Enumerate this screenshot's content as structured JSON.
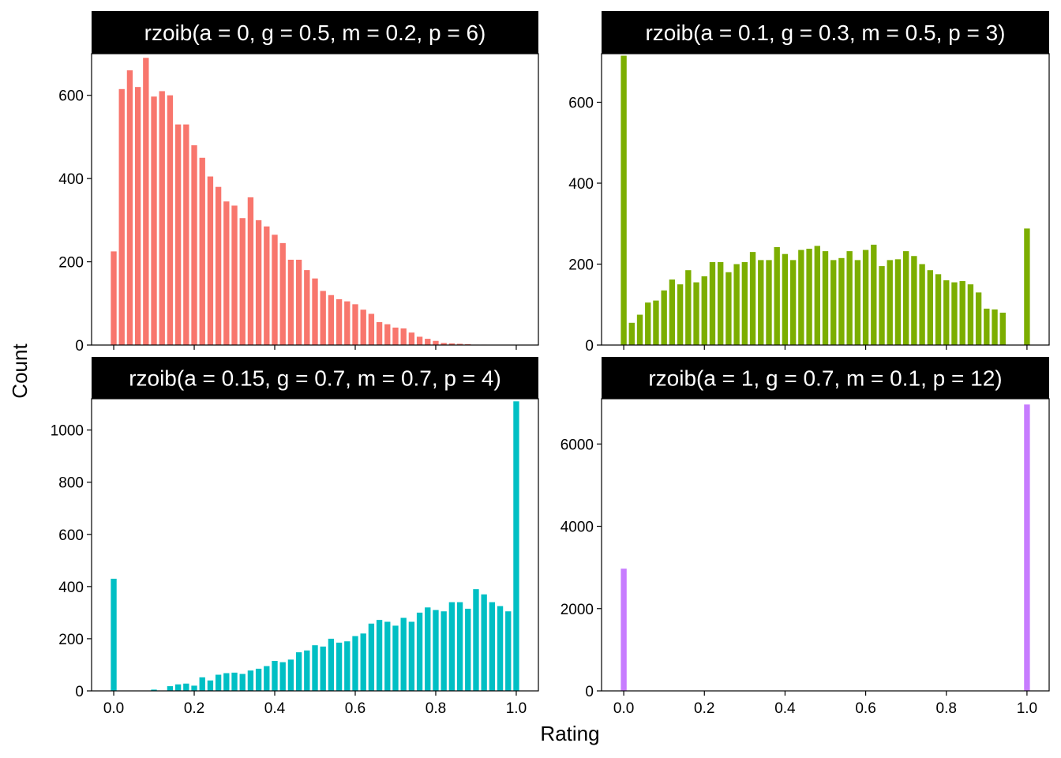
{
  "chart_data": {
    "type": "bar",
    "xlabel": "Rating",
    "ylabel": "Count",
    "x_ticks": [
      0.0,
      0.2,
      0.4,
      0.6,
      0.8,
      1.0
    ],
    "x_tick_labels": [
      "0.0",
      "0.2",
      "0.4",
      "0.6",
      "0.8",
      "1.0"
    ],
    "bin_centers": [
      0.0,
      0.02,
      0.04,
      0.06,
      0.08,
      0.1,
      0.12,
      0.14,
      0.16,
      0.18,
      0.2,
      0.22,
      0.24,
      0.26,
      0.28,
      0.3,
      0.32,
      0.34,
      0.36,
      0.38,
      0.4,
      0.42,
      0.44,
      0.46,
      0.48,
      0.5,
      0.52,
      0.54,
      0.56,
      0.58,
      0.6,
      0.62,
      0.64,
      0.66,
      0.68,
      0.7,
      0.72,
      0.74,
      0.76,
      0.78,
      0.8,
      0.82,
      0.84,
      0.86,
      0.88,
      0.9,
      0.92,
      0.94,
      0.96,
      0.98,
      1.0
    ],
    "xlim": [
      -0.055,
      1.055
    ],
    "panels": [
      {
        "title": "rzoib(a = 0, g = 0.5, m = 0.2, p = 6)",
        "color": "#F8766D",
        "ylim": [
          0,
          700
        ],
        "y_ticks": [
          0,
          200,
          400,
          600
        ],
        "y_tick_labels": [
          "0",
          "200",
          "400",
          "600"
        ],
        "values": [
          225,
          615,
          660,
          620,
          690,
          597,
          610,
          600,
          530,
          530,
          480,
          450,
          405,
          380,
          345,
          335,
          305,
          355,
          300,
          285,
          265,
          245,
          205,
          205,
          180,
          160,
          130,
          120,
          110,
          105,
          98,
          85,
          75,
          55,
          50,
          42,
          40,
          30,
          20,
          15,
          10,
          5,
          4,
          3,
          2,
          1,
          1,
          0,
          0,
          0,
          0
        ]
      },
      {
        "title": "rzoib(a = 0.1, g = 0.3, m = 0.5, p = 3)",
        "color": "#7CAE00",
        "ylim": [
          0,
          720
        ],
        "y_ticks": [
          0,
          200,
          400,
          600
        ],
        "y_tick_labels": [
          "0",
          "200",
          "400",
          "600"
        ],
        "values": [
          715,
          55,
          75,
          105,
          110,
          135,
          162,
          150,
          185,
          155,
          170,
          205,
          205,
          180,
          200,
          205,
          230,
          210,
          210,
          242,
          225,
          210,
          235,
          238,
          245,
          232,
          210,
          215,
          232,
          210,
          235,
          248,
          195,
          210,
          212,
          232,
          220,
          200,
          185,
          175,
          160,
          155,
          158,
          150,
          130,
          90,
          88,
          80,
          0,
          0,
          288
        ]
      },
      {
        "title": "rzoib(a = 0.15, g = 0.7, m = 0.7, p = 4)",
        "color": "#00BFC4",
        "ylim": [
          0,
          1120
        ],
        "y_ticks": [
          0,
          200,
          400,
          600,
          800,
          1000
        ],
        "y_tick_labels": [
          "0",
          "200",
          "400",
          "600",
          "800",
          "1000"
        ],
        "values": [
          430,
          0,
          0,
          0,
          0,
          5,
          0,
          18,
          25,
          28,
          20,
          52,
          40,
          62,
          68,
          70,
          65,
          78,
          85,
          95,
          115,
          110,
          120,
          148,
          155,
          175,
          170,
          200,
          185,
          190,
          210,
          220,
          258,
          272,
          265,
          250,
          280,
          265,
          300,
          320,
          310,
          305,
          340,
          340,
          315,
          390,
          370,
          340,
          325,
          305,
          1110
        ]
      },
      {
        "title": "rzoib(a = 1, g = 0.7, m = 0.1, p = 12)",
        "color": "#C77CFF",
        "ylim": [
          0,
          7100
        ],
        "y_ticks": [
          0,
          2000,
          4000,
          6000
        ],
        "y_tick_labels": [
          "0",
          "2000",
          "4000",
          "6000"
        ],
        "values": [
          2970,
          0,
          0,
          0,
          0,
          0,
          0,
          0,
          0,
          0,
          0,
          0,
          0,
          0,
          0,
          0,
          0,
          0,
          0,
          0,
          0,
          0,
          0,
          0,
          0,
          0,
          0,
          0,
          0,
          0,
          0,
          0,
          0,
          0,
          0,
          0,
          0,
          0,
          0,
          0,
          0,
          0,
          0,
          0,
          0,
          0,
          0,
          0,
          0,
          0,
          6960
        ]
      }
    ]
  }
}
